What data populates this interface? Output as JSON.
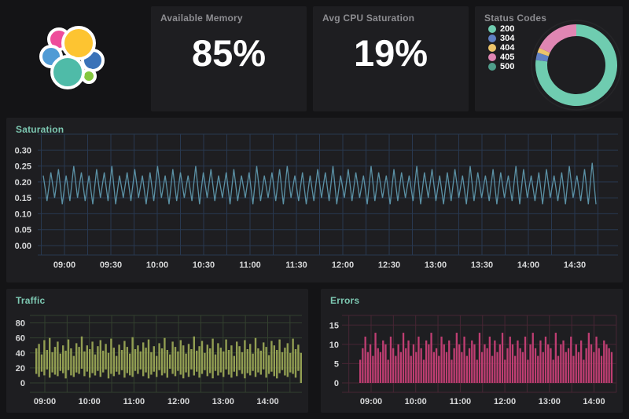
{
  "colors": {
    "page_bg": "#141416",
    "panel_bg": "#1e1e21",
    "title_gray": "#8d8d91",
    "title_teal": "#7dc8b2",
    "tick_label": "#d8d9da"
  },
  "logo": {
    "name": "elastic-logo",
    "palette": {
      "pink": "#ee4c9b",
      "yellow": "#fdc431",
      "light_blue": "#509bd5",
      "medium_blue": "#3a72b8",
      "teal": "#4fbba8",
      "green": "#84c73e"
    }
  },
  "stats": [
    {
      "title": "Available Memory",
      "value": "85%"
    },
    {
      "title": "Avg CPU Saturation",
      "value": "19%"
    }
  ],
  "status_codes": {
    "title": "Status Codes"
  },
  "chart_data": [
    {
      "type": "pie",
      "donut": true,
      "title": "Status Codes",
      "legend_position": "left",
      "labels": [
        "200",
        "304",
        "404",
        "405",
        "500"
      ],
      "values": [
        77,
        3,
        2,
        18,
        0
      ],
      "colors": [
        "#6fccb0",
        "#6080c4",
        "#edc46b",
        "#e086b3",
        "#4f9e8b"
      ]
    },
    {
      "type": "line",
      "title": "Saturation",
      "color": "#5b91a5",
      "grid_color": "#283850",
      "ylim": [
        0,
        0.35
      ],
      "yticks": [
        "0.00",
        "0.05",
        "0.10",
        "0.15",
        "0.20",
        "0.25",
        "0.30"
      ],
      "xticks": [
        "09:00",
        "09:30",
        "10:00",
        "10:30",
        "11:00",
        "11:30",
        "12:00",
        "12:30",
        "13:00",
        "13:30",
        "14:00",
        "14:30"
      ],
      "start": 0.22,
      "end": 0.13,
      "peaks": [
        0.23,
        0.24,
        0.22,
        0.25,
        0.23,
        0.22,
        0.24,
        0.23,
        0.25,
        0.22,
        0.23,
        0.24,
        0.22,
        0.23,
        0.25,
        0.22,
        0.24,
        0.23,
        0.22,
        0.25,
        0.23,
        0.24,
        0.22,
        0.23,
        0.24,
        0.22,
        0.23,
        0.25,
        0.22,
        0.23,
        0.24,
        0.25,
        0.22,
        0.23,
        0.22,
        0.24,
        0.23,
        0.25,
        0.22,
        0.24,
        0.23,
        0.22,
        0.25,
        0.23,
        0.22,
        0.24,
        0.23,
        0.22,
        0.25,
        0.23,
        0.24,
        0.22,
        0.23,
        0.24,
        0.22,
        0.25,
        0.23,
        0.22,
        0.24,
        0.23,
        0.22,
        0.25,
        0.24,
        0.22,
        0.23,
        0.24,
        0.22,
        0.23,
        0.25,
        0.22,
        0.24,
        0.26
      ],
      "troughs": [
        0.14,
        0.15,
        0.13,
        0.14,
        0.15,
        0.14,
        0.13,
        0.15,
        0.14,
        0.13,
        0.15,
        0.14,
        0.15,
        0.13,
        0.14,
        0.15,
        0.13,
        0.14,
        0.15,
        0.14,
        0.13,
        0.15,
        0.14,
        0.15,
        0.13,
        0.14,
        0.15,
        0.13,
        0.14,
        0.15,
        0.14,
        0.13,
        0.15,
        0.14,
        0.13,
        0.14,
        0.15,
        0.14,
        0.13,
        0.15,
        0.14,
        0.15,
        0.13,
        0.14,
        0.15,
        0.13,
        0.14,
        0.15,
        0.14,
        0.13,
        0.15,
        0.14,
        0.13,
        0.14,
        0.15,
        0.13,
        0.14,
        0.15,
        0.14,
        0.13,
        0.15,
        0.14,
        0.13,
        0.15,
        0.14,
        0.13,
        0.15,
        0.14,
        0.13,
        0.15,
        0.14,
        0.13
      ]
    },
    {
      "type": "bar-range",
      "title": "Traffic",
      "color": "#929e52",
      "grid_color": "#33402f",
      "ylim": [
        0,
        90
      ],
      "yticks": [
        "0",
        "20",
        "40",
        "60",
        "80"
      ],
      "xticks": [
        "09:00",
        "10:00",
        "11:00",
        "12:00",
        "13:00",
        "14:00"
      ],
      "tops": [
        46,
        52,
        38,
        57,
        44,
        60,
        41,
        48,
        55,
        39,
        50,
        43,
        58,
        46,
        36,
        53,
        48,
        62,
        42,
        50,
        45,
        55,
        38,
        49,
        57,
        43,
        52,
        40,
        59,
        47,
        36,
        51,
        44,
        56,
        48,
        39,
        61,
        45,
        50,
        42,
        54,
        47,
        58,
        41,
        49,
        36,
        53,
        46,
        60,
        44,
        38,
        55,
        48,
        42,
        57,
        50,
        39,
        52,
        45,
        62,
        43,
        49,
        56,
        40,
        51,
        46,
        59,
        38,
        53,
        47,
        42,
        58,
        44,
        50,
        36,
        55,
        49,
        41,
        57,
        45,
        52,
        39,
        60,
        46,
        43,
        54,
        48,
        37,
        56,
        50,
        44,
        58,
        41,
        47,
        53,
        40,
        59,
        45,
        51,
        40
      ],
      "bottoms": [
        12,
        8,
        15,
        10,
        18,
        7,
        14,
        11,
        9,
        16,
        13,
        6,
        17,
        10,
        8,
        14,
        12,
        19,
        9,
        15,
        7,
        13,
        10,
        16,
        8,
        14,
        18,
        6,
        12,
        9,
        15,
        11,
        17,
        7,
        13,
        10,
        8,
        16,
        12,
        18,
        9,
        14,
        6,
        11,
        15,
        8,
        17,
        10,
        13,
        7,
        19,
        12,
        9,
        16,
        11,
        6,
        14,
        8,
        18,
        10,
        15,
        7,
        12,
        17,
        9,
        13,
        6,
        16,
        10,
        14,
        8,
        18,
        11,
        7,
        15,
        9,
        17,
        12,
        6,
        13,
        10,
        16,
        8,
        14,
        11,
        18,
        7,
        12,
        15,
        9,
        6,
        13,
        17,
        10,
        8,
        14,
        12,
        7,
        16,
        0
      ]
    },
    {
      "type": "bar",
      "title": "Errors",
      "color": "#bf3e72",
      "grid_color": "#472634",
      "ylim": [
        0,
        17.5
      ],
      "yticks": [
        "0",
        "5",
        "10",
        "15"
      ],
      "xticks": [
        "09:00",
        "10:00",
        "11:00",
        "12:00",
        "13:00",
        "14:00"
      ],
      "heights": [
        6,
        9,
        12,
        8,
        10,
        7,
        13,
        9,
        8,
        11,
        10,
        6,
        12,
        9,
        7,
        10,
        8,
        13,
        9,
        11,
        7,
        10,
        8,
        12,
        9,
        6,
        11,
        10,
        13,
        8,
        9,
        7,
        12,
        10,
        8,
        11,
        6,
        9,
        13,
        10,
        8,
        12,
        7,
        9,
        11,
        10,
        6,
        13,
        8,
        10,
        9,
        12,
        7,
        11,
        8,
        10,
        13,
        6,
        9,
        12,
        10,
        7,
        11,
        9,
        8,
        12,
        6,
        10,
        13,
        9,
        7,
        11,
        8,
        12,
        10,
        9,
        6,
        13,
        7,
        10,
        11,
        8,
        9,
        12,
        7,
        10,
        8,
        11,
        6,
        9,
        13,
        10,
        8,
        12,
        9,
        7,
        11,
        10,
        9,
        8
      ]
    }
  ]
}
